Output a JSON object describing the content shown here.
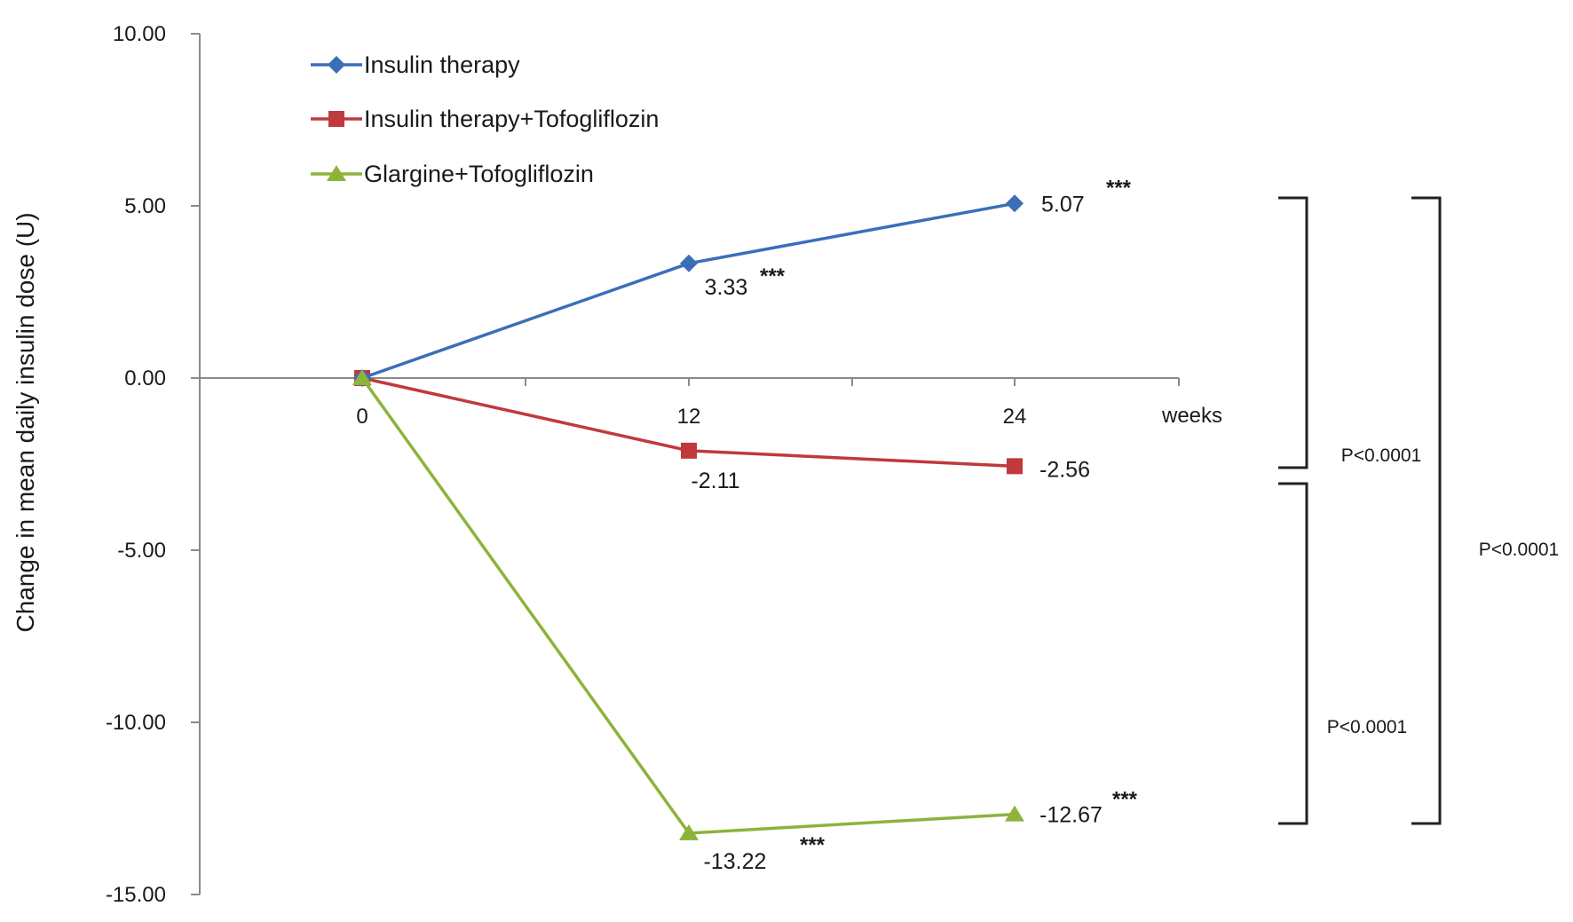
{
  "chart_data": {
    "type": "line",
    "ylabel": "Change in mean daily insulin dose (U)",
    "xlabel": "weeks",
    "categories": [
      "0",
      "12",
      "24"
    ],
    "ylim": [
      -15,
      10
    ],
    "yticks": [
      10,
      5,
      0,
      -5,
      -10,
      -15
    ],
    "ytick_labels": [
      "10.00",
      "5.00",
      "0.00",
      "-5.00",
      "-10.00",
      "-15.00"
    ],
    "grid": false,
    "legend_position": "top-left",
    "series": [
      {
        "name": "Insulin therapy",
        "color": "#3a6fb8",
        "marker": "diamond",
        "values": [
          0,
          3.33,
          5.07
        ],
        "labels": [
          "",
          "3.33",
          "5.07"
        ],
        "significance": [
          "",
          "***",
          "***"
        ]
      },
      {
        "name": "Insulin therapy+Tofogliflozin",
        "color": "#c0393b",
        "marker": "square",
        "values": [
          0,
          -2.11,
          -2.56
        ],
        "labels": [
          "",
          "-2.11",
          "-2.56"
        ],
        "significance": [
          "",
          "",
          ""
        ]
      },
      {
        "name": "Glargine+Tofogliflozin",
        "color": "#8db33a",
        "marker": "triangle",
        "values": [
          0,
          -13.22,
          -12.67
        ],
        "labels": [
          "",
          "-13.22",
          "-12.67"
        ],
        "significance": [
          "",
          "***",
          "***"
        ]
      }
    ],
    "comparisons": [
      {
        "label": "P<0.0001",
        "from_series": 0,
        "to_series": 1
      },
      {
        "label": "P<0.0001",
        "from_series": 1,
        "to_series": 2
      },
      {
        "label": "P<0.0001",
        "from_series": 0,
        "to_series": 2
      }
    ]
  }
}
